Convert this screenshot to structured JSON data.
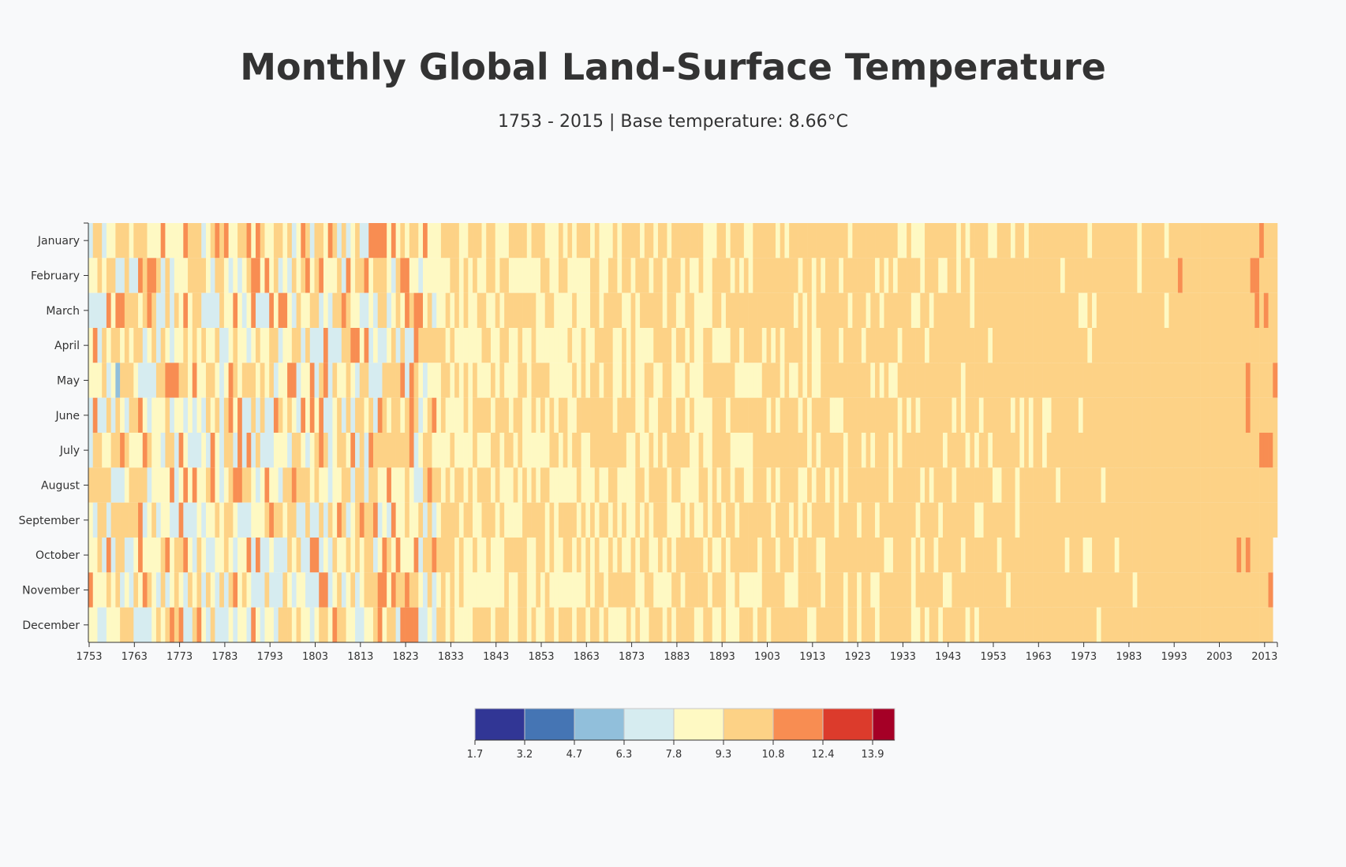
{
  "title": "Monthly Global Land-Surface Temperature",
  "subtitle": "1753 - 2015 | Base temperature: 8.66°C",
  "chart_data": {
    "type": "heatmap",
    "title": "Monthly Global Land-Surface Temperature",
    "subtitle": "1753 - 2015 | Base temperature: 8.66°C",
    "base_temperature": 8.66,
    "x_range": [
      1753,
      2015
    ],
    "x_tick_labels": [
      1753,
      1763,
      1773,
      1783,
      1793,
      1803,
      1813,
      1823,
      1833,
      1843,
      1853,
      1863,
      1873,
      1883,
      1893,
      1903,
      1913,
      1923,
      1933,
      1943,
      1953,
      1963,
      1973,
      1983,
      1993,
      2003,
      2013
    ],
    "months": [
      "January",
      "February",
      "March",
      "April",
      "May",
      "June",
      "July",
      "August",
      "September",
      "October",
      "November",
      "December"
    ],
    "last_year_months_available": 9,
    "legend": {
      "thresholds": [
        1.7,
        3.2,
        4.7,
        6.3,
        7.8,
        9.3,
        10.8,
        12.4,
        13.9
      ],
      "colors": [
        "#313695",
        "#4575b4",
        "#91bfdb",
        "#d6ecf0",
        "#fef9c3",
        "#fdd286",
        "#f88d52",
        "#dc3b2c",
        "#a50026"
      ]
    },
    "grid": false
  }
}
